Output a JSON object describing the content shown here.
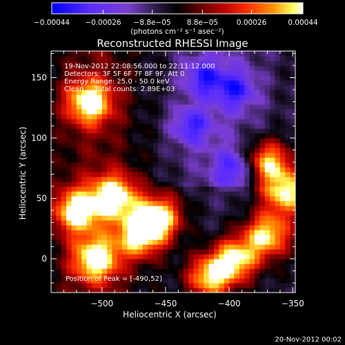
{
  "chart_data": {
    "type": "heatmap",
    "title": "Reconstructed RHESSI Image",
    "xlabel": "Heliocentric X (arcsec)",
    "ylabel": "Heliocentric Y (arcsec)",
    "xlim": [
      -540,
      -348
    ],
    "ylim": [
      -28,
      172
    ],
    "x_ticks": [
      -500,
      -450,
      -400,
      -350
    ],
    "x_tick_labels": [
      "−500",
      "−450",
      "−400",
      "−350"
    ],
    "y_ticks": [
      0,
      50,
      100,
      150
    ],
    "y_tick_labels": [
      "0",
      "50",
      "100",
      "150"
    ],
    "colorbar": {
      "min": -0.00044,
      "max": 0.00044,
      "ticks": [
        -0.00044,
        -0.00026,
        -8.8e-05,
        8.8e-05,
        0.00026,
        0.00044
      ],
      "tick_labels": [
        "−0.00044",
        "−0.00026",
        "−8.8e−05",
        "8.8e−05",
        "0.00026",
        "0.00044"
      ],
      "units_label": "(photons cm⁻² s⁻¹ asec⁻²)",
      "colors": [
        "#0000ff",
        "#5a2cff",
        "#7b3fd0",
        "#2a1a40",
        "#000000",
        "#5a0000",
        "#b50000",
        "#ff3000",
        "#ff9000",
        "#ffff60",
        "#ffffff"
      ]
    },
    "annotations": [
      "19-Nov-2012 22:08:56.000 to 22:11:12.000",
      "Detectors: 3F 5F 6F 7F 8F 9F, Att 0",
      "Energy Range: 25.0 - 50.0 keV",
      "Clean     Total counts: 2.89E+03"
    ],
    "peak_label": "Position of Peak = [-490,52]",
    "peak_position": [
      -490,
      52
    ],
    "bright_sources": [
      {
        "x": -510,
        "y": 130
      },
      {
        "x": -490,
        "y": 52
      },
      {
        "x": -455,
        "y": 35
      },
      {
        "x": -470,
        "y": 20
      },
      {
        "x": -520,
        "y": 40
      },
      {
        "x": -505,
        "y": 0
      },
      {
        "x": -370,
        "y": 80
      },
      {
        "x": -370,
        "y": 20
      },
      {
        "x": -355,
        "y": 55
      },
      {
        "x": -395,
        "y": 0
      },
      {
        "x": -415,
        "y": -15
      }
    ],
    "negative_sources": [
      {
        "x": -395,
        "y": 140
      },
      {
        "x": -430,
        "y": 110
      },
      {
        "x": -395,
        "y": 75
      },
      {
        "x": -420,
        "y": 150
      }
    ]
  },
  "footer_date": "20-Nov-2012 00:02"
}
